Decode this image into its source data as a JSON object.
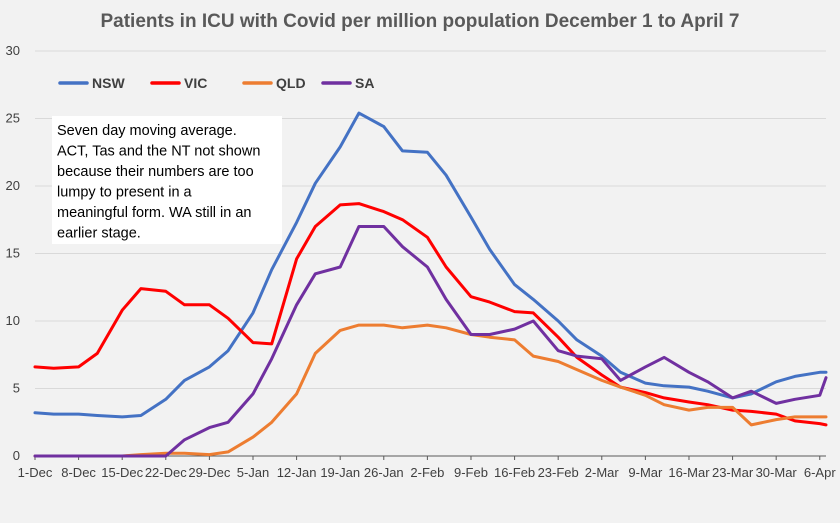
{
  "chart_data": {
    "type": "line",
    "title": "Patients in ICU with Covid per million population December 1  to April 7",
    "xlabel": "",
    "ylabel": "",
    "ylim": [
      0,
      30
    ],
    "yticks": [
      0,
      5,
      10,
      15,
      20,
      25,
      30
    ],
    "grid": "horizontal",
    "legend_position": "top-left",
    "x_tick_labels": [
      "1-Dec",
      "8-Dec",
      "15-Dec",
      "22-Dec",
      "29-Dec",
      "5-Jan",
      "12-Jan",
      "19-Jan",
      "26-Jan",
      "2-Feb",
      "9-Feb",
      "16-Feb",
      "23-Feb",
      "2-Mar",
      "9-Mar",
      "16-Mar",
      "23-Mar",
      "30-Mar",
      "6-Apr"
    ],
    "x": [
      "1-Dec",
      "4-Dec",
      "8-Dec",
      "11-Dec",
      "15-Dec",
      "18-Dec",
      "22-Dec",
      "25-Dec",
      "29-Dec",
      "1-Jan",
      "5-Jan",
      "8-Jan",
      "12-Jan",
      "15-Jan",
      "19-Jan",
      "22-Jan",
      "26-Jan",
      "29-Jan",
      "2-Feb",
      "5-Feb",
      "9-Feb",
      "12-Feb",
      "16-Feb",
      "19-Feb",
      "23-Feb",
      "26-Feb",
      "2-Mar",
      "5-Mar",
      "9-Mar",
      "12-Mar",
      "16-Mar",
      "19-Mar",
      "23-Mar",
      "26-Mar",
      "30-Mar",
      "2-Apr",
      "6-Apr",
      "7-Apr"
    ],
    "series": [
      {
        "name": "NSW",
        "color": "#4472c4",
        "values": [
          3.2,
          3.1,
          3.1,
          3.0,
          2.9,
          3.0,
          4.2,
          5.6,
          6.6,
          7.8,
          10.6,
          13.8,
          17.3,
          20.2,
          22.9,
          25.4,
          24.4,
          22.6,
          22.5,
          20.8,
          17.7,
          15.3,
          12.7,
          11.6,
          10.0,
          8.6,
          7.4,
          6.2,
          5.4,
          5.2,
          5.1,
          4.8,
          4.3,
          4.6,
          5.5,
          5.9,
          6.2,
          6.2
        ]
      },
      {
        "name": "VIC",
        "color": "#ff0000",
        "values": [
          6.6,
          6.5,
          6.6,
          7.6,
          10.8,
          12.4,
          12.2,
          11.2,
          11.2,
          10.2,
          8.4,
          8.3,
          14.6,
          17.0,
          18.6,
          18.7,
          18.1,
          17.5,
          16.2,
          14.0,
          11.8,
          11.4,
          10.7,
          10.6,
          8.8,
          7.3,
          6.0,
          5.1,
          4.7,
          4.3,
          4.0,
          3.8,
          3.4,
          3.3,
          3.1,
          2.6,
          2.4,
          2.3
        ]
      },
      {
        "name": "QLD",
        "color": "#ed7d31",
        "values": [
          0.0,
          0.0,
          0.0,
          0.0,
          0.0,
          0.1,
          0.2,
          0.2,
          0.1,
          0.3,
          1.4,
          2.5,
          4.6,
          7.6,
          9.3,
          9.7,
          9.7,
          9.5,
          9.7,
          9.5,
          9.0,
          8.8,
          8.6,
          7.4,
          7.0,
          6.4,
          5.6,
          5.1,
          4.5,
          3.8,
          3.4,
          3.6,
          3.6,
          2.3,
          2.7,
          2.9,
          2.9,
          2.9
        ]
      },
      {
        "name": "SA",
        "color": "#7030a0",
        "values": [
          0.0,
          0.0,
          0.0,
          0.0,
          0.0,
          0.0,
          0.0,
          1.2,
          2.1,
          2.5,
          4.6,
          7.2,
          11.2,
          13.5,
          14.0,
          17.0,
          17.0,
          15.5,
          14.0,
          11.6,
          9.0,
          9.0,
          9.4,
          10.0,
          7.8,
          7.4,
          7.2,
          5.6,
          6.6,
          7.3,
          6.2,
          5.5,
          4.3,
          4.8,
          3.9,
          4.2,
          4.5,
          5.8
        ]
      }
    ]
  },
  "annotation_lines": [
    "Seven day moving average.",
    "ACT, Tas and the NT not shown",
    "because their numbers are too",
    "lumpy to present  in a",
    "meaningful form. WA still in an",
    "earlier stage."
  ]
}
